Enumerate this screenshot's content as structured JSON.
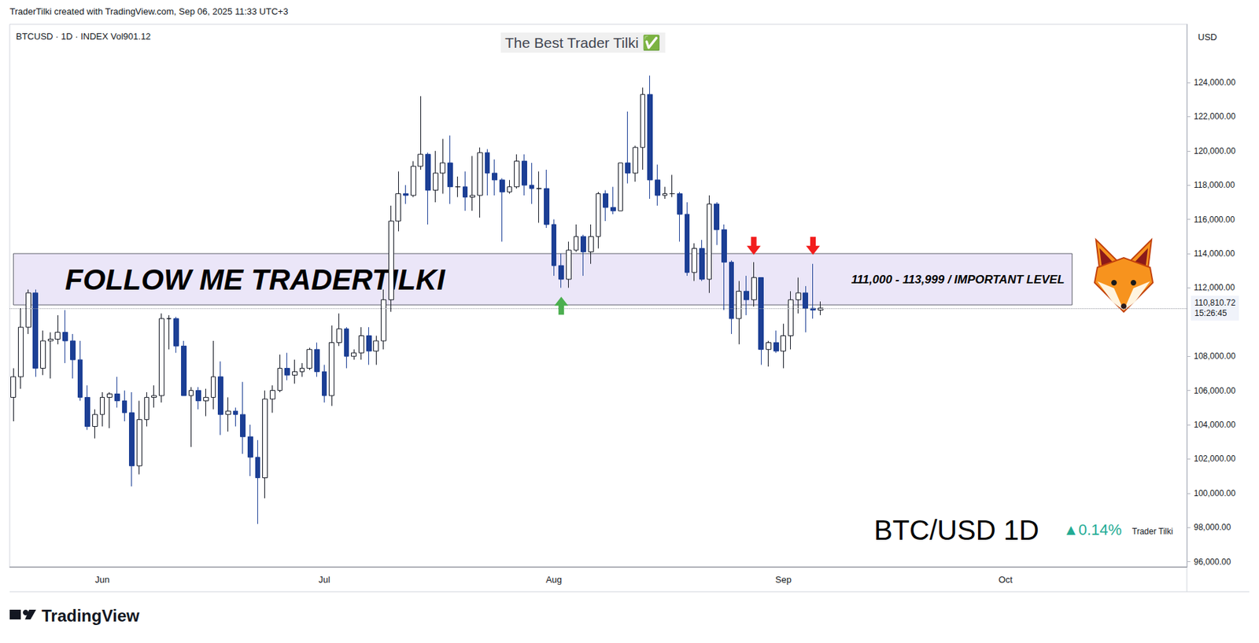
{
  "chart_data": {
    "type": "candlestick",
    "title": "The Best Trader Tilki ✅",
    "subtitle": "BTCUSD · 1D · INDEX Vol901.12",
    "y_label": "USD",
    "grid": false,
    "categories": [
      null,
      null,
      null,
      null,
      null,
      null,
      null,
      null,
      null,
      null,
      null,
      null,
      "Jun",
      null,
      null,
      null,
      null,
      null,
      null,
      null,
      null,
      null,
      null,
      null,
      null,
      null,
      null,
      null,
      null,
      null,
      null,
      null,
      null,
      null,
      null,
      null,
      null,
      null,
      null,
      null,
      null,
      null,
      "Jul",
      null,
      null,
      null,
      null,
      null,
      null,
      null,
      null,
      null,
      null,
      null,
      null,
      null,
      null,
      null,
      null,
      null,
      null,
      null,
      null,
      null,
      null,
      null,
      null,
      null,
      null,
      null,
      null,
      null,
      null,
      "Aug",
      null,
      null,
      null,
      null,
      null,
      null,
      null,
      null,
      null,
      null,
      null,
      null,
      null,
      null,
      null,
      null,
      null,
      null,
      null,
      null,
      null,
      null,
      null,
      null,
      null,
      null,
      null,
      null,
      null,
      null,
      "Sep",
      null,
      null,
      null,
      null,
      null,
      null,
      null,
      null,
      null,
      null,
      null,
      null,
      null,
      null,
      null,
      null,
      null,
      null,
      null,
      null,
      null,
      null,
      null,
      null,
      null,
      null,
      null,
      null,
      null,
      "Oct",
      null,
      null,
      null,
      null,
      null,
      null,
      null,
      null,
      null,
      null,
      null,
      null,
      null,
      null,
      null,
      null,
      null,
      null,
      null,
      null,
      null,
      null,
      null,
      null
    ],
    "series": [
      {
        "color": "#1c3f95",
        "open": [
          105600,
          106800,
          109700,
          111700,
          107300,
          108900,
          109000,
          109400,
          108900,
          107800,
          105600,
          103900,
          104600,
          105600,
          105800,
          105400,
          104700,
          101600,
          104300,
          105600,
          105700,
          110200,
          110200,
          108600,
          105700,
          106000,
          105400,
          105600,
          106800,
          104600,
          104800,
          104600,
          103300,
          102100,
          100900,
          105500,
          106000,
          107300,
          106900,
          107100,
          107300,
          108400,
          107100,
          105700,
          108800,
          109600,
          108000,
          108200,
          109200,
          108300,
          108900,
          111300,
          115900,
          117500,
          117400,
          119100,
          119800,
          117700,
          118700,
          119300,
          117900,
          117900,
          117300,
          117400,
          119900,
          118700,
          118300,
          117600,
          117900,
          119400,
          118000,
          117800,
          117800,
          115700,
          113300,
          112500,
          114200,
          115000,
          114100,
          115000,
          117500,
          116700,
          116500,
          119300,
          118700,
          120200,
          123300,
          118300,
          117400,
          117500,
          117500,
          116300,
          112900,
          114300,
          112500,
          116900,
          115400,
          113500,
          110200,
          111800,
          111300,
          112600,
          108400,
          108800,
          108300,
          109200,
          111300,
          111700,
          110800,
          110700,
          null,
          null,
          null,
          null,
          null,
          null,
          null,
          null,
          null,
          null,
          null,
          null,
          null,
          null,
          null,
          null,
          null,
          null,
          null,
          null,
          null,
          null,
          null,
          null,
          null,
          null,
          null,
          null,
          null,
          null,
          null,
          null,
          null,
          null,
          null,
          null,
          null,
          null,
          null,
          null,
          null,
          null,
          null,
          null,
          null,
          null,
          null,
          null,
          null
        ],
        "high": [
          107300,
          110800,
          111900,
          111900,
          109500,
          109400,
          110400,
          110700,
          109300,
          108900,
          106300,
          104900,
          105900,
          105900,
          106800,
          106000,
          105900,
          105400,
          105900,
          106300,
          110500,
          110400,
          110300,
          108900,
          106200,
          106200,
          106100,
          108900,
          107700,
          105600,
          105000,
          106500,
          104000,
          103100,
          106000,
          106300,
          108100,
          108200,
          107800,
          107600,
          108500,
          108800,
          107500,
          109800,
          110500,
          109700,
          108400,
          109700,
          109700,
          109200,
          111900,
          116800,
          118800,
          118000,
          119400,
          123200,
          119900,
          120000,
          120700,
          120900,
          118500,
          118800,
          119700,
          120200,
          120100,
          119500,
          118400,
          118300,
          119800,
          119800,
          119300,
          118800,
          118900,
          116000,
          114000,
          114700,
          115700,
          115100,
          115700,
          117600,
          117700,
          117900,
          119300,
          122300,
          120300,
          123700,
          124400,
          119200,
          117900,
          118600,
          117600,
          117000,
          114600,
          114800,
          117400,
          117000,
          115700,
          113600,
          112400,
          112700,
          113500,
          112600,
          108900,
          109500,
          109900,
          111800,
          112600,
          112100,
          113400,
          111200,
          null,
          null,
          null,
          null,
          null,
          null,
          null,
          null,
          null,
          null,
          null,
          null,
          null,
          null,
          null,
          null,
          null,
          null,
          null,
          null,
          null,
          null,
          null,
          null,
          null,
          null,
          null,
          null,
          null,
          null,
          null,
          null,
          null,
          null,
          null,
          null,
          null,
          null,
          null,
          null,
          null,
          null,
          null,
          null,
          null,
          null,
          null,
          null,
          null
        ],
        "low": [
          104200,
          106100,
          109300,
          106800,
          106900,
          106700,
          108700,
          107600,
          106700,
          105400,
          103700,
          103200,
          103900,
          103800,
          105000,
          104200,
          100400,
          101100,
          103900,
          105000,
          105300,
          108400,
          108200,
          105700,
          102700,
          104900,
          104500,
          104900,
          103400,
          103600,
          103900,
          102300,
          101000,
          98200,
          99700,
          104700,
          105900,
          106600,
          106400,
          106800,
          107200,
          106800,
          105300,
          105100,
          108600,
          107300,
          107800,
          107800,
          107500,
          107500,
          108400,
          110600,
          115300,
          116900,
          117300,
          118900,
          115700,
          117000,
          117500,
          116900,
          117300,
          116500,
          116500,
          116100,
          117400,
          117400,
          114700,
          117500,
          117800,
          117400,
          116900,
          115800,
          115500,
          112700,
          112000,
          112000,
          114100,
          112700,
          113400,
          114300,
          115900,
          116300,
          116500,
          118100,
          118200,
          118900,
          117200,
          116800,
          117200,
          117300,
          114700,
          112700,
          112400,
          112400,
          111700,
          114500,
          110700,
          109300,
          108700,
          110400,
          110900,
          107500,
          107400,
          108200,
          107300,
          108400,
          110500,
          109400,
          110200,
          110400,
          null,
          null,
          null,
          null,
          null,
          null,
          null,
          null,
          null,
          null,
          null,
          null,
          null,
          null,
          null,
          null,
          null,
          null,
          null,
          null,
          null,
          null,
          null,
          null,
          null,
          null,
          null,
          null,
          null,
          null,
          null,
          null,
          null,
          null,
          null,
          null,
          null,
          null,
          null,
          null,
          null,
          null,
          null,
          null,
          null,
          null,
          null,
          null,
          null
        ],
        "close": [
          106800,
          109700,
          111700,
          107300,
          108900,
          109000,
          109400,
          108900,
          107800,
          105600,
          103900,
          104600,
          105600,
          105800,
          105400,
          104700,
          101600,
          104300,
          105600,
          105700,
          110200,
          110200,
          108600,
          105700,
          106000,
          105400,
          105600,
          106800,
          104600,
          104800,
          104600,
          103300,
          102100,
          100900,
          105500,
          106000,
          107300,
          106900,
          107100,
          107300,
          108400,
          107100,
          105700,
          108800,
          109600,
          108000,
          108200,
          109200,
          108300,
          108900,
          111300,
          115900,
          117500,
          117400,
          119100,
          119800,
          117700,
          118700,
          119300,
          117900,
          117900,
          117300,
          117400,
          119900,
          118700,
          118300,
          117600,
          117900,
          119400,
          118000,
          117800,
          117800,
          115700,
          113300,
          112500,
          114200,
          115000,
          114100,
          115000,
          117500,
          116700,
          116500,
          119300,
          118700,
          120200,
          123300,
          118300,
          117400,
          117500,
          117500,
          116300,
          112900,
          114300,
          112500,
          116900,
          115400,
          113500,
          110200,
          111800,
          111300,
          112600,
          108400,
          108800,
          108300,
          109200,
          111300,
          111700,
          110800,
          110700,
          110810.72,
          null,
          null,
          null,
          null,
          null,
          null,
          null,
          null,
          null,
          null,
          null,
          null,
          null,
          null,
          null,
          null,
          null,
          null,
          null,
          null,
          null,
          null,
          null,
          null,
          null,
          null,
          null,
          null,
          null,
          null,
          null,
          null,
          null,
          null,
          null,
          null,
          null,
          null,
          null,
          null,
          null,
          null,
          null,
          null,
          null,
          null,
          null,
          null,
          null
        ]
      }
    ],
    "ylim": [
      95700,
      127400
    ],
    "yticks": [
      {
        "value": 96000,
        "label": "96,000.00"
      },
      {
        "value": 98000,
        "label": "98,000.00"
      },
      {
        "value": 100000,
        "label": "100,000.00"
      },
      {
        "value": 102000,
        "label": "102,000.00"
      },
      {
        "value": 104000,
        "label": "104,000.00"
      },
      {
        "value": 106000,
        "label": "106,000.00"
      },
      {
        "value": 108000,
        "label": "108,000.00"
      },
      {
        "value": 112000,
        "label": "112,000.00"
      },
      {
        "value": 114000,
        "label": "114,000.00"
      },
      {
        "value": 116000,
        "label": "116,000.00"
      },
      {
        "value": 118000,
        "label": "118,000.00"
      },
      {
        "value": 120000,
        "label": "120,000.00"
      },
      {
        "value": 122000,
        "label": "122,000.00"
      },
      {
        "value": 124000,
        "label": "124,000.00"
      }
    ],
    "last_price": {
      "value": 110810.72,
      "label": "110,810.72",
      "countdown": "15:26:45"
    },
    "annotations": {
      "header": "TraderTilki created with TradingView.com, Sep 06, 2025 11:33 UTC+3",
      "watermark": "BTC/USD 1D",
      "change": "▲0.14%",
      "author": "Trader Tilki",
      "footer": "TradingView",
      "zone": {
        "low": 111000,
        "high": 113999,
        "start": 0,
        "end": 143,
        "text": "FOLLOW ME TRADERTILKI",
        "label": "111,000 - 113,999 / IMPORTANT LEVEL",
        "color": "#e4def5"
      },
      "arrows": [
        {
          "index": 74,
          "price": 110950,
          "direction": "up",
          "color": "#4caf50"
        },
        {
          "index": 100,
          "price": 114450,
          "direction": "down",
          "color": "#f21d1d"
        },
        {
          "index": 108,
          "price": 114450,
          "direction": "down",
          "color": "#f21d1d"
        }
      ]
    }
  }
}
